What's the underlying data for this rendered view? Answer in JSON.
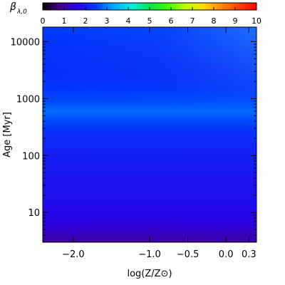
{
  "chart_data": {
    "type": "heatmap",
    "title": "",
    "xlabel": "log(Z/Z⊙)",
    "ylabel": "Age [Myr]",
    "x_scale": "linear",
    "y_scale": "log",
    "xlim": [
      -2.4,
      0.4
    ],
    "ylim": [
      3,
      18000
    ],
    "x_ticks": [
      {
        "value": -2.0,
        "label": "−2.0"
      },
      {
        "value": -1.0,
        "label": "−1.0"
      },
      {
        "value": -0.5,
        "label": "−0.5"
      },
      {
        "value": 0.0,
        "label": "0.0"
      },
      {
        "value": 0.3,
        "label": "0.3"
      }
    ],
    "y_ticks": [
      {
        "value": 10,
        "label": "10"
      },
      {
        "value": 100,
        "label": "100"
      },
      {
        "value": 1000,
        "label": "1000"
      },
      {
        "value": 10000,
        "label": "10000"
      }
    ],
    "colorbar": {
      "label": "β",
      "label_subscript": "λ,0",
      "range": [
        0,
        10
      ],
      "ticks": [
        "0",
        "1",
        "2",
        "3",
        "4",
        "5",
        "6",
        "7",
        "8",
        "9",
        "10"
      ],
      "colormap": "rainbow",
      "position": "top"
    },
    "value_profile_by_age": [
      {
        "age": 3,
        "value": 1.0
      },
      {
        "age": 4,
        "value": 1.2
      },
      {
        "age": 6,
        "value": 1.5
      },
      {
        "age": 10,
        "value": 1.7
      },
      {
        "age": 20,
        "value": 1.85
      },
      {
        "age": 35,
        "value": 1.85
      },
      {
        "age": 60,
        "value": 2.0
      },
      {
        "age": 120,
        "value": 2.1
      },
      {
        "age": 250,
        "value": 2.3
      },
      {
        "age": 400,
        "value": 2.6
      },
      {
        "age": 600,
        "value": 2.85
      },
      {
        "age": 900,
        "value": 2.6
      },
      {
        "age": 1500,
        "value": 2.4
      },
      {
        "age": 3000,
        "value": 2.3
      },
      {
        "age": 6000,
        "value": 2.35
      },
      {
        "age": 10000,
        "value": 2.4
      },
      {
        "age": 18000,
        "value": 2.5
      }
    ],
    "metallicity_trend_at_old_ages": "values rise slightly toward high log(Z/Z⊙) above ~3000 Myr"
  }
}
